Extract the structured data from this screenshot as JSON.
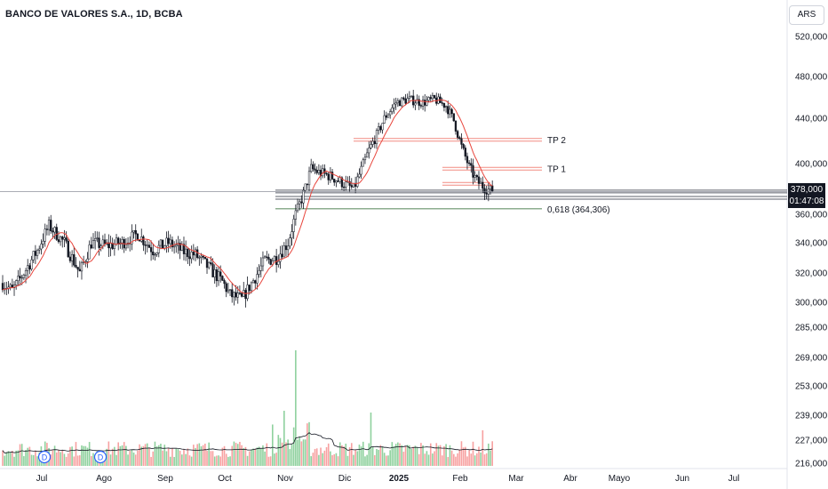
{
  "header": {
    "title": "BANCO DE VALORES S.A., 1D, BCBA",
    "currency": "ARS"
  },
  "price_tag": {
    "price": "378,000",
    "countdown": "01:47:08"
  },
  "colors": {
    "up": "#ffffff",
    "down": "#131722",
    "ma": "#e8453c",
    "level_red": "#f28b82",
    "level_gray": "#5d606b",
    "fib": "#1b5e20",
    "vol_up": "#8fd19e",
    "vol_down": "#f7a1a1",
    "vol_ma": "#131722"
  },
  "chart_data": {
    "type": "candlestick",
    "title": "BANCO DE VALORES S.A., 1D, BCBA",
    "y_ticks": [
      "520,000",
      "480,000",
      "440,000",
      "400,000",
      "360,000",
      "340,000",
      "320,000",
      "300,000",
      "285,000",
      "269,000",
      "253,000",
      "239,000",
      "227,000",
      "216,000"
    ],
    "x_ticks": [
      "Jul",
      "Ago",
      "Sep",
      "Oct",
      "Nov",
      "Dic",
      "2025",
      "Feb",
      "Mar",
      "Abr",
      "Mayo",
      "Jun",
      "Jul"
    ],
    "last_price": 378000,
    "ylim": [
      216000,
      530000
    ],
    "levels": [
      {
        "label": "TP 2",
        "price": 421000,
        "color": "red"
      },
      {
        "label": "TP 1",
        "price": 396000,
        "color": "red"
      },
      {
        "label": "",
        "price": 384000,
        "color": "red"
      },
      {
        "label": "",
        "price": 378000,
        "color": "gray"
      },
      {
        "label": "",
        "price": 373000,
        "color": "gray"
      },
      {
        "label": "0,618 (364,306)",
        "price": 364306,
        "color": "green"
      }
    ],
    "dividend_markers": [
      "D",
      "D"
    ],
    "trend_anchors": [
      [
        0,
        313000
      ],
      [
        5,
        308000
      ],
      [
        10,
        318000
      ],
      [
        18,
        335000
      ],
      [
        24,
        352000
      ],
      [
        32,
        340000
      ],
      [
        40,
        320000
      ],
      [
        46,
        340000
      ],
      [
        54,
        338000
      ],
      [
        62,
        340000
      ],
      [
        70,
        346000
      ],
      [
        78,
        335000
      ],
      [
        86,
        340000
      ],
      [
        94,
        334000
      ],
      [
        100,
        332000
      ],
      [
        108,
        322000
      ],
      [
        114,
        314000
      ],
      [
        118,
        305000
      ],
      [
        124,
        302000
      ],
      [
        130,
        315000
      ],
      [
        136,
        328000
      ],
      [
        142,
        330000
      ],
      [
        148,
        340000
      ],
      [
        152,
        360000
      ],
      [
        156,
        376000
      ],
      [
        160,
        396000
      ],
      [
        164,
        393000
      ],
      [
        170,
        390000
      ],
      [
        176,
        385000
      ],
      [
        182,
        380000
      ],
      [
        186,
        395000
      ],
      [
        190,
        412000
      ],
      [
        194,
        425000
      ],
      [
        198,
        440000
      ],
      [
        204,
        455000
      ],
      [
        210,
        458000
      ],
      [
        218,
        455000
      ],
      [
        224,
        458000
      ],
      [
        230,
        452000
      ],
      [
        234,
        438000
      ],
      [
        238,
        415000
      ],
      [
        242,
        397000
      ],
      [
        246,
        386000
      ],
      [
        250,
        381000
      ],
      [
        254,
        378000
      ]
    ]
  }
}
